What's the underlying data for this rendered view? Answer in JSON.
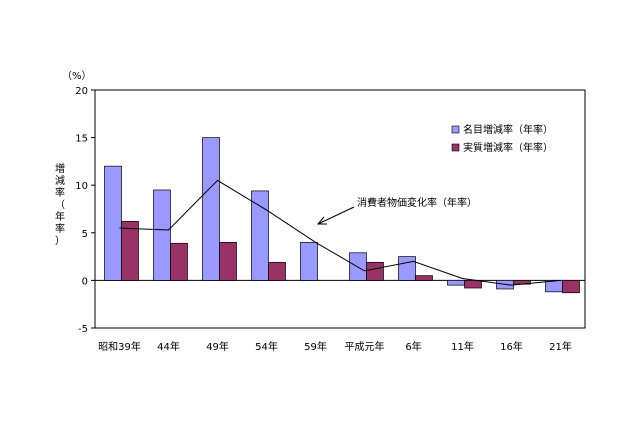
{
  "chart_data": {
    "type": "bar",
    "unit_label": "（%）",
    "ylabel": "増減率（年率）",
    "ylim": [
      -5,
      20
    ],
    "yticks": [
      -5,
      0,
      5,
      10,
      15,
      20
    ],
    "categories": [
      "昭和39年",
      "44年",
      "49年",
      "54年",
      "59年",
      "平成元年",
      "6年",
      "11年",
      "16年",
      "21年"
    ],
    "series": [
      {
        "name": "名目増減率（年率）",
        "kind": "bar",
        "color": "#9999ff",
        "values": [
          12.0,
          9.5,
          15.0,
          9.4,
          4.0,
          2.9,
          2.5,
          -0.5,
          -0.9,
          -1.2
        ]
      },
      {
        "name": "実質増減率（年率）",
        "kind": "bar",
        "color": "#993366",
        "values": [
          6.2,
          3.9,
          4.0,
          1.9,
          null,
          1.9,
          0.5,
          -0.8,
          -0.4,
          -1.3
        ]
      },
      {
        "name": "消費者物価変化率（年率）",
        "kind": "line",
        "color": "#000000",
        "values": [
          5.5,
          5.3,
          10.5,
          7.4,
          4.0,
          1.0,
          2.0,
          0.2,
          -0.5,
          0.0
        ]
      }
    ],
    "annotation": "消費者物価変化率（年率）",
    "legend_position": "top-right",
    "grid": false
  }
}
